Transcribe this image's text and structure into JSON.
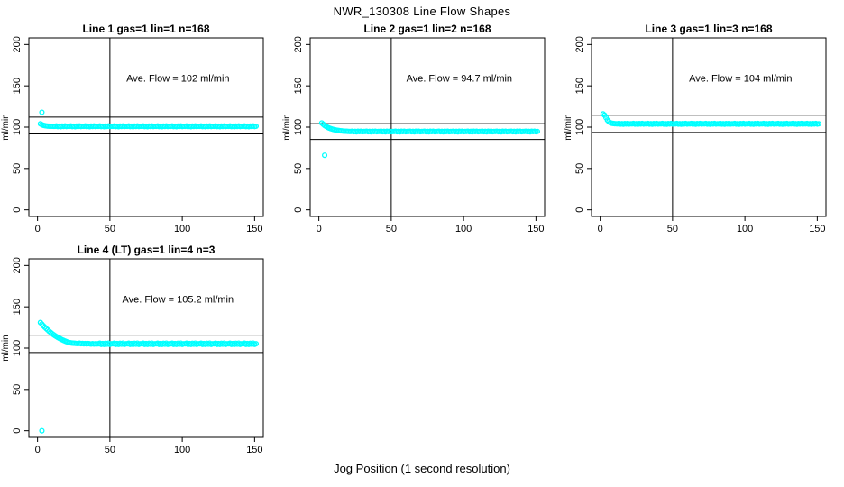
{
  "page_title": "NWR_130308  Line Flow Shapes",
  "x_axis_label": "Jog Position (1 second resolution)",
  "colors": {
    "points": "#00FFFF",
    "axis": "#000000",
    "background": "#FFFFFF"
  },
  "chart_data": [
    {
      "type": "scatter",
      "title": "Line 1 gas=1 lin=1 n=168",
      "annotation": "Ave. Flow =  102  ml/min",
      "ave_flow_ml_min": 102,
      "ylabel": "ml/min",
      "xticks": [
        0,
        50,
        100,
        150
      ],
      "yticks": [
        0,
        50,
        100,
        150,
        200
      ],
      "xlim": [
        -6,
        156
      ],
      "ylim": [
        -8,
        208
      ],
      "vline_x": 50,
      "hlines": [
        112.2,
        91.8
      ],
      "x_start": 2,
      "x_step": 1,
      "y": [
        104,
        103,
        102.2,
        101.8,
        101.5,
        101.3,
        101.2,
        101.1,
        101.1,
        101,
        101,
        101.4,
        100.7,
        101.2,
        100.6,
        101.3,
        100.9,
        101.4,
        100.8,
        101.1,
        101,
        101.4,
        100.7,
        101.2,
        100.6,
        101.3,
        100.9,
        101.4,
        100.8,
        101.1,
        101,
        101.4,
        100.7,
        101.2,
        100.6,
        101.3,
        100.9,
        101.4,
        100.8,
        101.1,
        101,
        101.4,
        100.7,
        101.2,
        100.6,
        101.3,
        100.9,
        101.4,
        100.8,
        101.1,
        101,
        101.4,
        100.7,
        101.2,
        100.6,
        101.3,
        100.9,
        101.4,
        100.8,
        101.1,
        101,
        101.4,
        100.7,
        101.2,
        100.6,
        101.3,
        100.9,
        101.4,
        100.8,
        101.1,
        101,
        101.4,
        100.7,
        101.2,
        100.6,
        101.3,
        100.9,
        101.4,
        100.8,
        101.1,
        101,
        101.4,
        100.7,
        101.2,
        100.6,
        101.3,
        100.9,
        101.4,
        100.8,
        101.1,
        101,
        101.4,
        100.7,
        101.2,
        100.6,
        101.3,
        100.9,
        101.4,
        100.8,
        101.1,
        101,
        101.4,
        100.7,
        101.2,
        100.6,
        101.3,
        100.9,
        101.4,
        100.8,
        101.1,
        101,
        101.4,
        100.7,
        101.2,
        100.6,
        101.3,
        100.9,
        101.4,
        100.8,
        101.1,
        101,
        101.4,
        100.7,
        101.2,
        100.6,
        101.3,
        100.9,
        101.4,
        100.8,
        101.1,
        101,
        101.4,
        100.7,
        101.2,
        100.6,
        101.3,
        100.9,
        101.4,
        100.8,
        101.1,
        101,
        101.4,
        100.7,
        101.2,
        100.6,
        101.3,
        100.9,
        101.4,
        100.8,
        101.1
      ],
      "outliers": [
        [
          3,
          118
        ]
      ]
    },
    {
      "type": "scatter",
      "title": "Line 2 gas=1 lin=2 n=168",
      "annotation": "Ave. Flow =  94.7  ml/min",
      "ave_flow_ml_min": 94.7,
      "ylabel": "ml/min",
      "xticks": [
        0,
        50,
        100,
        150
      ],
      "yticks": [
        0,
        50,
        100,
        150,
        200
      ],
      "xlim": [
        -6,
        156
      ],
      "ylim": [
        -8,
        208
      ],
      "vline_x": 50,
      "hlines": [
        104.2,
        85.2
      ],
      "x_start": 2,
      "x_step": 1,
      "y": [
        105,
        103.5,
        102,
        100.8,
        99.8,
        99,
        98.3,
        97.7,
        97.2,
        96.8,
        96.4,
        96.1,
        95.8,
        95.6,
        95.4,
        95.2,
        95.1,
        95,
        94.9,
        94.8,
        94.7,
        95.1,
        94.4,
        94.9,
        94.3,
        95,
        94.6,
        95.1,
        94.5,
        94.8,
        94.7,
        95.1,
        94.4,
        94.9,
        94.3,
        95,
        94.6,
        95.1,
        94.5,
        94.8,
        94.7,
        95.1,
        94.4,
        94.9,
        94.3,
        95,
        94.6,
        95.1,
        94.5,
        94.8,
        94.7,
        95.1,
        94.4,
        94.9,
        94.3,
        95,
        94.6,
        95.1,
        94.5,
        94.8,
        94.7,
        95.1,
        94.4,
        94.9,
        94.3,
        95,
        94.6,
        95.1,
        94.5,
        94.8,
        94.7,
        95.1,
        94.4,
        94.9,
        94.3,
        95,
        94.6,
        95.1,
        94.5,
        94.8,
        94.7,
        95.1,
        94.4,
        94.9,
        94.3,
        95,
        94.6,
        95.1,
        94.5,
        94.8,
        94.7,
        95.1,
        94.4,
        94.9,
        94.3,
        95,
        94.6,
        95.1,
        94.5,
        94.8,
        94.7,
        95.1,
        94.4,
        94.9,
        94.3,
        95,
        94.6,
        95.1,
        94.5,
        94.8,
        94.7,
        95.1,
        94.4,
        94.9,
        94.3,
        95,
        94.6,
        95.1,
        94.5,
        94.8,
        94.7,
        95.1,
        94.4,
        94.9,
        94.3,
        95,
        94.6,
        95.1,
        94.5,
        94.8,
        94.7,
        95.1,
        94.4,
        94.9,
        94.3,
        95,
        94.6,
        95.1,
        94.5,
        94.8,
        94.7,
        95.1,
        94.4,
        94.9,
        94.3,
        95,
        94.6,
        95.1,
        94.5,
        94.8
      ],
      "outliers": [
        [
          4,
          66
        ]
      ]
    },
    {
      "type": "scatter",
      "title": "Line 3 gas=1 lin=3 n=168",
      "annotation": "Ave. Flow =  104  ml/min",
      "ave_flow_ml_min": 104,
      "ylabel": "ml/min",
      "xticks": [
        0,
        50,
        100,
        150
      ],
      "yticks": [
        0,
        50,
        100,
        150,
        200
      ],
      "xlim": [
        -6,
        156
      ],
      "ylim": [
        -8,
        208
      ],
      "vline_x": 50,
      "hlines": [
        114.4,
        93.6
      ],
      "x_start": 2,
      "x_step": 1,
      "y": [
        116,
        114.5,
        111.5,
        108.5,
        106.5,
        105.3,
        104.7,
        104.4,
        104.2,
        104.1,
        104,
        104.4,
        103.7,
        104.2,
        103.6,
        104.3,
        103.9,
        104.4,
        103.8,
        104.1,
        104,
        104.4,
        103.7,
        104.2,
        103.6,
        104.3,
        103.9,
        104.4,
        103.8,
        104.1,
        104,
        104.4,
        103.7,
        104.2,
        103.6,
        104.3,
        103.9,
        104.4,
        103.8,
        104.1,
        104,
        104.4,
        103.7,
        104.2,
        103.6,
        104.3,
        103.9,
        104.4,
        103.8,
        104.1,
        104,
        104.4,
        103.7,
        104.2,
        103.6,
        104.3,
        103.9,
        104.4,
        103.8,
        104.1,
        104,
        104.4,
        103.7,
        104.2,
        103.6,
        104.3,
        103.9,
        104.4,
        103.8,
        104.1,
        104,
        104.4,
        103.7,
        104.2,
        103.6,
        104.3,
        103.9,
        104.4,
        103.8,
        104.1,
        104,
        104.4,
        103.7,
        104.2,
        103.6,
        104.3,
        103.9,
        104.4,
        103.8,
        104.1,
        104,
        104.4,
        103.7,
        104.2,
        103.6,
        104.3,
        103.9,
        104.4,
        103.8,
        104.1,
        104,
        104.4,
        103.7,
        104.2,
        103.6,
        104.3,
        103.9,
        104.4,
        103.8,
        104.1,
        104,
        104.4,
        103.7,
        104.2,
        103.6,
        104.3,
        103.9,
        104.4,
        103.8,
        104.1,
        104,
        104.4,
        103.7,
        104.2,
        103.6,
        104.3,
        103.9,
        104.4,
        103.8,
        104.1,
        104,
        104.4,
        103.7,
        104.2,
        103.6,
        104.3,
        103.9,
        104.4,
        103.8,
        104.1,
        104,
        104.4,
        103.7,
        104.2,
        103.6,
        104.3,
        103.9,
        104.4,
        103.8,
        104.1
      ],
      "outliers": []
    },
    {
      "type": "scatter",
      "title": "Line 4 (LT) gas=1 lin=4 n=3",
      "annotation": "Ave. Flow =  105.2  ml/min",
      "ave_flow_ml_min": 105.2,
      "ylabel": "ml/min",
      "xticks": [
        0,
        50,
        100,
        150
      ],
      "yticks": [
        0,
        50,
        100,
        150,
        200
      ],
      "xlim": [
        -6,
        156
      ],
      "ylim": [
        -8,
        208
      ],
      "vline_x": 50,
      "hlines": [
        115.7,
        94.7
      ],
      "x_start": 2,
      "x_step": 1,
      "y": [
        131,
        129,
        127.1,
        125.3,
        123.6,
        122,
        120.4,
        119,
        117.6,
        116.3,
        115.1,
        114,
        112.9,
        111.9,
        111,
        110.1,
        109.3,
        108.5,
        107.8,
        107.2,
        106.6,
        106.3,
        106.1,
        105.9,
        105.8,
        105.6,
        105.5,
        105.9,
        105.4,
        105.7,
        105.2,
        105.6,
        105.1,
        105.5,
        105.3,
        104.9,
        105.4,
        105,
        105.3,
        105.1,
        105.2,
        105.9,
        104.6,
        105.5,
        104.5,
        105.8,
        104.8,
        106,
        104.6,
        105.3,
        105.2,
        105.9,
        104.6,
        105.5,
        104.5,
        105.8,
        104.8,
        106,
        104.6,
        105.3,
        105.2,
        105.9,
        104.6,
        105.5,
        104.5,
        105.8,
        104.8,
        106,
        104.6,
        105.3,
        105.2,
        105.9,
        104.6,
        105.5,
        104.5,
        105.8,
        104.8,
        106,
        104.6,
        105.3,
        105.2,
        105.9,
        104.6,
        105.5,
        104.5,
        105.8,
        104.8,
        106,
        104.6,
        105.3,
        105.2,
        105.9,
        104.6,
        105.5,
        104.5,
        105.8,
        104.8,
        106,
        104.6,
        105.3,
        105.2,
        105.9,
        104.6,
        105.5,
        104.5,
        105.8,
        104.8,
        106,
        104.6,
        105.3,
        105.2,
        105.9,
        104.6,
        105.5,
        104.5,
        105.8,
        104.8,
        106,
        104.6,
        105.3,
        105.2,
        105.9,
        104.6,
        105.5,
        104.5,
        105.8,
        104.8,
        106,
        104.6,
        105.3,
        105.2,
        105.9,
        104.6,
        105.5,
        104.5,
        105.8,
        104.8,
        106,
        104.6,
        105.3,
        105.2,
        105.9,
        104.6,
        105.5,
        104.5,
        105.8,
        104.8,
        106,
        104.6,
        105.3
      ],
      "outliers": [
        [
          3,
          0
        ]
      ]
    }
  ]
}
